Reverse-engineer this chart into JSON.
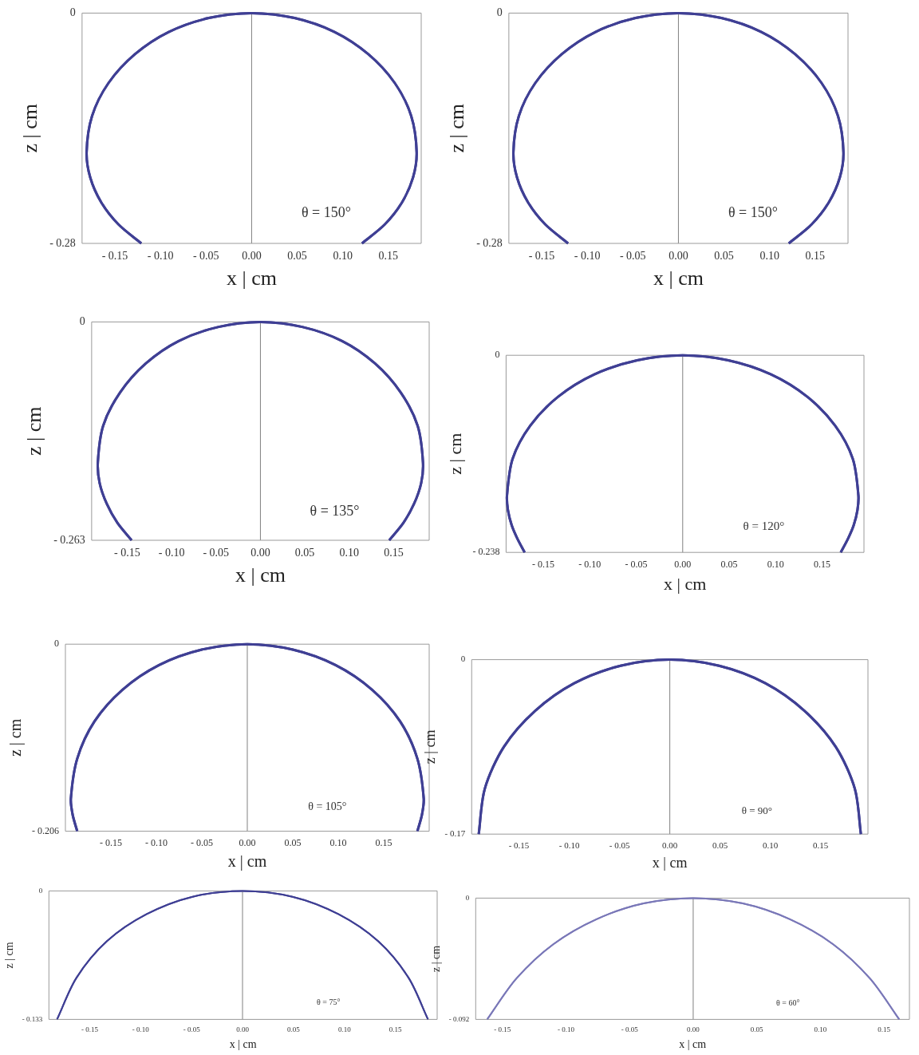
{
  "chart_data": [
    {
      "type": "line",
      "xlabel": "x | cm",
      "ylabel": "z | cm",
      "annotations": [
        "θ = 150°"
      ],
      "xlim": [
        -0.186,
        0.186
      ],
      "ylim": [
        -0.28,
        0
      ],
      "xticks": [
        {
          "value": -0.15,
          "label": "- 0.15"
        },
        {
          "value": -0.1,
          "label": "- 0.10"
        },
        {
          "value": -0.05,
          "label": "- 0.05"
        },
        {
          "value": 0,
          "label": "0.00"
        },
        {
          "value": 0.05,
          "label": "0.05"
        },
        {
          "value": 0.1,
          "label": "0.10"
        },
        {
          "value": 0.15,
          "label": "0.15"
        }
      ],
      "yticks": [
        {
          "value": -0.28,
          "label": "- 0.28"
        },
        {
          "value": 0,
          "label": "0"
        }
      ],
      "ref_lines": [
        {
          "axis": "x",
          "value": 0,
          "color": "#808080"
        }
      ],
      "grid": false,
      "series": [
        {
          "color": "#3f3f94",
          "x": [
            -0.121,
            -0.146,
            -0.165,
            -0.177,
            -0.181,
            -0.175,
            -0.157,
            -0.128,
            -0.091,
            -0.047,
            0,
            0.047,
            0.091,
            0.128,
            0.157,
            0.175,
            0.181,
            0.177,
            0.165,
            0.146,
            0.121
          ],
          "values": [
            -0.28,
            -0.257,
            -0.23,
            -0.2,
            -0.169,
            -0.125,
            -0.085,
            -0.05,
            -0.023,
            -0.006,
            0,
            -0.006,
            -0.023,
            -0.05,
            -0.085,
            -0.125,
            -0.169,
            -0.2,
            -0.23,
            -0.257,
            -0.28
          ]
        }
      ]
    },
    {
      "type": "line",
      "xlabel": "x | cm",
      "ylabel": "z | cm",
      "annotations": [
        "θ = 150°"
      ],
      "xlim": [
        -0.186,
        0.186
      ],
      "ylim": [
        -0.28,
        0
      ],
      "xticks": [
        {
          "value": -0.15,
          "label": "- 0.15"
        },
        {
          "value": -0.1,
          "label": "- 0.10"
        },
        {
          "value": -0.05,
          "label": "- 0.05"
        },
        {
          "value": 0,
          "label": "0.00"
        },
        {
          "value": 0.05,
          "label": "0.05"
        },
        {
          "value": 0.1,
          "label": "0.10"
        },
        {
          "value": 0.15,
          "label": "0.15"
        }
      ],
      "yticks": [
        {
          "value": -0.28,
          "label": "- 0.28"
        },
        {
          "value": 0,
          "label": "0"
        }
      ],
      "ref_lines": [
        {
          "axis": "x",
          "value": 0,
          "color": "#808080"
        }
      ],
      "grid": false,
      "series": [
        {
          "color": "#3f3f94",
          "x": [
            -0.121,
            -0.146,
            -0.165,
            -0.177,
            -0.181,
            -0.175,
            -0.157,
            -0.128,
            -0.091,
            -0.047,
            0,
            0.047,
            0.091,
            0.128,
            0.157,
            0.175,
            0.181,
            0.177,
            0.165,
            0.146,
            0.121
          ],
          "values": [
            -0.28,
            -0.257,
            -0.23,
            -0.2,
            -0.169,
            -0.125,
            -0.085,
            -0.05,
            -0.023,
            -0.006,
            0,
            -0.006,
            -0.023,
            -0.05,
            -0.085,
            -0.125,
            -0.169,
            -0.2,
            -0.23,
            -0.257,
            -0.28
          ]
        }
      ]
    },
    {
      "type": "line",
      "xlabel": "x | cm",
      "ylabel": "z | cm",
      "annotations": [
        "θ = 135°"
      ],
      "xlim": [
        -0.19,
        0.19
      ],
      "ylim": [
        -0.263,
        0
      ],
      "xticks": [
        {
          "value": -0.15,
          "label": "- 0.15"
        },
        {
          "value": -0.1,
          "label": "- 0.10"
        },
        {
          "value": -0.05,
          "label": "- 0.05"
        },
        {
          "value": 0,
          "label": "0.00"
        },
        {
          "value": 0.05,
          "label": "0.05"
        },
        {
          "value": 0.1,
          "label": "0.10"
        },
        {
          "value": 0.15,
          "label": "0.15"
        }
      ],
      "yticks": [
        {
          "value": -0.263,
          "label": "- 0.263"
        },
        {
          "value": 0,
          "label": "0"
        }
      ],
      "ref_lines": [
        {
          "axis": "x",
          "value": 0,
          "color": "#808080"
        }
      ],
      "grid": false,
      "series": [
        {
          "color": "#3f3f94",
          "x": [
            -0.145,
            -0.161,
            -0.173,
            -0.181,
            -0.183,
            -0.177,
            -0.158,
            -0.129,
            -0.092,
            -0.047,
            0,
            0.047,
            0.092,
            0.129,
            0.158,
            0.177,
            0.183,
            0.181,
            0.173,
            0.161,
            0.145
          ],
          "values": [
            -0.263,
            -0.242,
            -0.219,
            -0.194,
            -0.169,
            -0.125,
            -0.085,
            -0.05,
            -0.023,
            -0.006,
            0,
            -0.006,
            -0.023,
            -0.05,
            -0.085,
            -0.125,
            -0.169,
            -0.194,
            -0.219,
            -0.242,
            -0.263
          ]
        }
      ]
    },
    {
      "type": "line",
      "xlabel": "x | cm",
      "ylabel": "z | cm",
      "annotations": [
        "θ = 120°"
      ],
      "xlim": [
        -0.19,
        0.195
      ],
      "ylim": [
        -0.238,
        0
      ],
      "xticks": [
        {
          "value": -0.15,
          "label": "- 0.15"
        },
        {
          "value": -0.1,
          "label": "- 0.10"
        },
        {
          "value": -0.05,
          "label": "- 0.05"
        },
        {
          "value": 0,
          "label": "0.00"
        },
        {
          "value": 0.05,
          "label": "0.05"
        },
        {
          "value": 0.1,
          "label": "0.10"
        },
        {
          "value": 0.15,
          "label": "0.15"
        }
      ],
      "yticks": [
        {
          "value": -0.238,
          "label": "- 0.238"
        },
        {
          "value": 0,
          "label": "0"
        }
      ],
      "ref_lines": [
        {
          "axis": "x",
          "value": 0,
          "color": "#808080"
        }
      ],
      "grid": false,
      "series": [
        {
          "color": "#3f3f94",
          "x": [
            -0.17,
            -0.178,
            -0.184,
            -0.188,
            -0.189,
            -0.183,
            -0.164,
            -0.134,
            -0.095,
            -0.049,
            0,
            0.049,
            0.095,
            0.134,
            0.164,
            0.183,
            0.189,
            0.188,
            0.184,
            0.178,
            0.17
          ],
          "values": [
            -0.238,
            -0.221,
            -0.205,
            -0.187,
            -0.169,
            -0.125,
            -0.085,
            -0.05,
            -0.023,
            -0.006,
            0,
            -0.006,
            -0.023,
            -0.05,
            -0.085,
            -0.125,
            -0.169,
            -0.187,
            -0.205,
            -0.221,
            -0.238
          ]
        }
      ]
    },
    {
      "type": "line",
      "xlabel": "x | cm",
      "ylabel": "z | cm",
      "annotations": [
        "θ = 105°"
      ],
      "xlim": [
        -0.2,
        0.2
      ],
      "ylim": [
        -0.206,
        0
      ],
      "xticks": [
        {
          "value": -0.15,
          "label": "- 0.15"
        },
        {
          "value": -0.1,
          "label": "- 0.10"
        },
        {
          "value": -0.05,
          "label": "- 0.05"
        },
        {
          "value": 0,
          "label": "0.00"
        },
        {
          "value": 0.05,
          "label": "0.05"
        },
        {
          "value": 0.1,
          "label": "0.10"
        },
        {
          "value": 0.15,
          "label": "0.15"
        }
      ],
      "yticks": [
        {
          "value": -0.206,
          "label": "- 0.206"
        },
        {
          "value": 0,
          "label": "0"
        }
      ],
      "ref_lines": [
        {
          "axis": "x",
          "value": 0,
          "color": "#808080"
        }
      ],
      "grid": false,
      "series": [
        {
          "color": "#3f3f94",
          "x": [
            -0.187,
            -0.192,
            -0.194,
            -0.187,
            -0.168,
            -0.137,
            -0.097,
            -0.05,
            0,
            0.05,
            0.097,
            0.137,
            0.168,
            0.187,
            0.194,
            0.192,
            0.187
          ],
          "values": [
            -0.206,
            -0.188,
            -0.17,
            -0.126,
            -0.085,
            -0.05,
            -0.023,
            -0.006,
            0,
            -0.006,
            -0.023,
            -0.05,
            -0.085,
            -0.126,
            -0.17,
            -0.188,
            -0.206
          ]
        }
      ]
    },
    {
      "type": "line",
      "xlabel": "x | cm",
      "ylabel": "z | cm",
      "annotations": [
        "θ = 90°"
      ],
      "xlim": [
        -0.197,
        0.197
      ],
      "ylim": [
        -0.17,
        0
      ],
      "xticks": [
        {
          "value": -0.15,
          "label": "- 0.15"
        },
        {
          "value": -0.1,
          "label": "- 0.10"
        },
        {
          "value": -0.05,
          "label": "- 0.05"
        },
        {
          "value": 0,
          "label": "0.00"
        },
        {
          "value": 0.05,
          "label": "0.05"
        },
        {
          "value": 0.1,
          "label": "0.10"
        },
        {
          "value": 0.15,
          "label": "0.15"
        }
      ],
      "yticks": [
        {
          "value": -0.17,
          "label": "- 0.17"
        },
        {
          "value": 0,
          "label": "0"
        }
      ],
      "ref_lines": [
        {
          "axis": "x",
          "value": 0,
          "color": "#808080"
        }
      ],
      "grid": false,
      "series": [
        {
          "color": "#3f3f94",
          "x": [
            -0.19,
            -0.184,
            -0.165,
            -0.134,
            -0.095,
            -0.049,
            0,
            0.049,
            0.095,
            0.134,
            0.165,
            0.184,
            0.19
          ],
          "values": [
            -0.17,
            -0.126,
            -0.085,
            -0.05,
            -0.023,
            -0.006,
            0,
            -0.006,
            -0.023,
            -0.05,
            -0.085,
            -0.126,
            -0.17
          ]
        }
      ]
    },
    {
      "type": "line",
      "xlabel": "x | cm",
      "ylabel": "z | cm",
      "annotations": [
        "θ = 75°"
      ],
      "xlim": [
        -0.19,
        0.191
      ],
      "ylim": [
        -0.133,
        0
      ],
      "xticks": [
        {
          "value": -0.15,
          "label": "- 0.15"
        },
        {
          "value": -0.1,
          "label": "- 0.10"
        },
        {
          "value": -0.05,
          "label": "- 0.05"
        },
        {
          "value": 0,
          "label": "0.00"
        },
        {
          "value": 0.05,
          "label": "0.05"
        },
        {
          "value": 0.1,
          "label": "0.10"
        },
        {
          "value": 0.15,
          "label": "0.15"
        }
      ],
      "yticks": [
        {
          "value": -0.133,
          "label": "- 0.133"
        },
        {
          "value": 0,
          "label": "0"
        }
      ],
      "ref_lines": [
        {
          "axis": "x",
          "value": 0,
          "color": "#808080"
        }
      ],
      "grid": false,
      "series": [
        {
          "color": "#3f3f94",
          "x": [
            -0.182,
            -0.163,
            -0.133,
            -0.094,
            -0.049,
            0,
            0.049,
            0.094,
            0.133,
            0.163,
            0.182
          ],
          "values": [
            -0.133,
            -0.09,
            -0.052,
            -0.024,
            -0.006,
            0,
            -0.006,
            -0.024,
            -0.052,
            -0.09,
            -0.133
          ]
        }
      ]
    },
    {
      "type": "line",
      "xlabel": "x | cm",
      "ylabel": "z | cm",
      "annotations": [
        "θ = 60°"
      ],
      "xlim": [
        -0.171,
        0.17
      ],
      "ylim": [
        -0.092,
        0
      ],
      "xticks": [
        {
          "value": -0.15,
          "label": "- 0.15"
        },
        {
          "value": -0.1,
          "label": "- 0.10"
        },
        {
          "value": -0.05,
          "label": "- 0.05"
        },
        {
          "value": 0,
          "label": "0.00"
        },
        {
          "value": 0.05,
          "label": "0.05"
        },
        {
          "value": 0.1,
          "label": "0.10"
        },
        {
          "value": 0.15,
          "label": "0.15"
        }
      ],
      "yticks": [
        {
          "value": -0.092,
          "label": "- 0.092"
        },
        {
          "value": 0,
          "label": "0"
        }
      ],
      "ref_lines": [
        {
          "axis": "x",
          "value": 0,
          "color": "#808080"
        }
      ],
      "grid": false,
      "series": [
        {
          "color": "#7a78b8",
          "x": [
            -0.162,
            -0.139,
            -0.11,
            -0.076,
            -0.039,
            0,
            0.039,
            0.076,
            0.11,
            0.139,
            0.162
          ],
          "values": [
            -0.092,
            -0.061,
            -0.035,
            -0.016,
            -0.004,
            0,
            -0.004,
            -0.016,
            -0.035,
            -0.061,
            -0.092
          ]
        }
      ]
    }
  ]
}
